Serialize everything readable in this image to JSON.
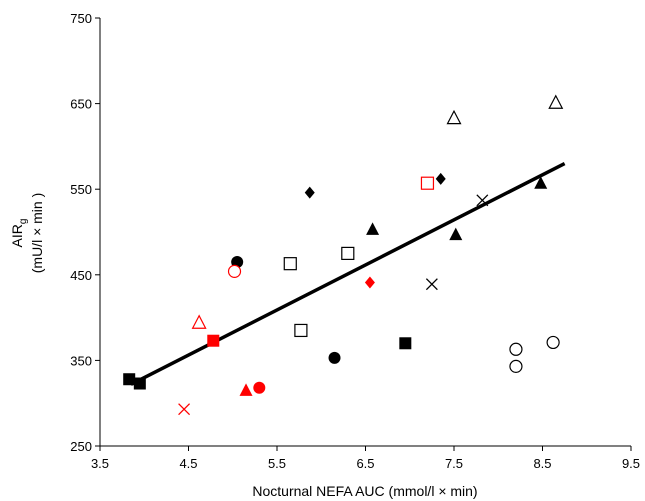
{
  "chart_data": {
    "type": "scatter",
    "title": "",
    "xlabel": "Nocturnal NEFA AUC (mmol/l × min)",
    "ylabel": {
      "main": "AIR",
      "subscript": "g",
      "units": "(mU/l × min )"
    },
    "xlim": [
      3.5,
      9.5
    ],
    "ylim": [
      250,
      750
    ],
    "xticks": [
      "3.5",
      "4.5",
      "5.5",
      "6.5",
      "7.5",
      "8.5",
      "9.5"
    ],
    "yticks": [
      "250",
      "350",
      "450",
      "550",
      "650",
      "750"
    ],
    "grid": false,
    "legend": "none",
    "colors": {
      "black": "#000000",
      "red": "#ff0000"
    },
    "series": [
      {
        "marker": "square-filled",
        "color": "#000000",
        "points": [
          [
            3.83,
            328
          ],
          [
            3.95,
            323
          ],
          [
            6.95,
            370
          ]
        ]
      },
      {
        "marker": "square-open",
        "color": "#000000",
        "points": [
          [
            5.65,
            463
          ],
          [
            5.77,
            385
          ],
          [
            6.3,
            475
          ]
        ]
      },
      {
        "marker": "square-filled",
        "color": "#ff0000",
        "points": [
          [
            4.78,
            373
          ]
        ]
      },
      {
        "marker": "square-open",
        "color": "#ff0000",
        "points": [
          [
            7.2,
            557
          ]
        ]
      },
      {
        "marker": "circle-filled",
        "color": "#000000",
        "points": [
          [
            5.05,
            465
          ],
          [
            6.15,
            353
          ]
        ]
      },
      {
        "marker": "circle-open",
        "color": "#000000",
        "points": [
          [
            8.2,
            363
          ],
          [
            8.2,
            343
          ],
          [
            8.62,
            371
          ]
        ]
      },
      {
        "marker": "circle-filled",
        "color": "#ff0000",
        "points": [
          [
            5.3,
            318
          ]
        ]
      },
      {
        "marker": "circle-open",
        "color": "#ff0000",
        "points": [
          [
            5.02,
            454
          ]
        ]
      },
      {
        "marker": "triangle-filled",
        "color": "#000000",
        "points": [
          [
            6.58,
            503
          ],
          [
            7.52,
            497
          ],
          [
            8.48,
            557
          ]
        ]
      },
      {
        "marker": "triangle-open",
        "color": "#000000",
        "points": [
          [
            7.5,
            633
          ],
          [
            8.65,
            651
          ]
        ]
      },
      {
        "marker": "triangle-filled",
        "color": "#ff0000",
        "points": [
          [
            5.15,
            315
          ]
        ]
      },
      {
        "marker": "triangle-open",
        "color": "#ff0000",
        "points": [
          [
            4.62,
            394
          ]
        ]
      },
      {
        "marker": "diamond-filled",
        "color": "#000000",
        "points": [
          [
            5.87,
            546
          ],
          [
            7.35,
            562
          ]
        ]
      },
      {
        "marker": "diamond-filled",
        "color": "#ff0000",
        "points": [
          [
            6.55,
            441
          ]
        ]
      },
      {
        "marker": "cross",
        "color": "#000000",
        "points": [
          [
            7.25,
            439
          ],
          [
            7.82,
            537
          ]
        ]
      },
      {
        "marker": "cross",
        "color": "#ff0000",
        "points": [
          [
            4.45,
            293
          ]
        ]
      }
    ],
    "regression_line": {
      "x": [
        3.85,
        8.75
      ],
      "y": [
        322,
        580
      ]
    }
  }
}
